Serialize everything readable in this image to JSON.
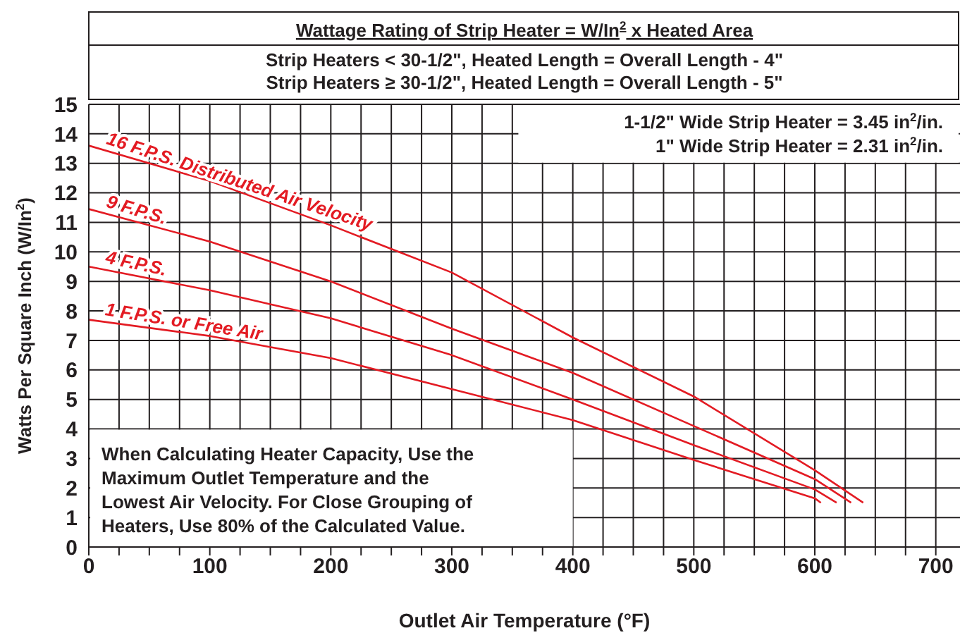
{
  "chart_data": {
    "type": "line",
    "title": "Wattage Rating of Strip Heater = W/In$^{2}$  x Heated Area",
    "subtitle": "Strip Heaters < 30-1/2\", Heated Length = Overall Length - 4\"\nStrip Heaters ≥ 30-1/2\", Heated Length = Overall Length - 5\"",
    "xlabel": "Outlet Air Temperature (°F)",
    "ylabel": "Watts Per Square Inch (W/In$^{2}$)",
    "annotations": [
      "1-1/2\" Wide Strip Heater = 3.45 in$^{2}$/in.\n1\" Wide Strip Heater = 2.31 in$^{2}$/in.",
      "When Calculating Heater Capacity, Use the\nMaximum Outlet Temperature and the\nLowest Air Velocity. For Close Grouping of\nHeaters, Use 80% of the Calculated Value."
    ],
    "series": [
      {
        "name": "16 F.P.S. Distributed Air Velocity",
        "color": "#e31b23",
        "x": [
          0,
          100,
          200,
          300,
          400,
          500,
          600,
          640
        ],
        "values": [
          13.6,
          12.4,
          10.9,
          9.3,
          7.1,
          5.1,
          2.6,
          1.5
        ]
      },
      {
        "name": "9 F.P.S.",
        "color": "#e31b23",
        "x": [
          0,
          100,
          200,
          300,
          400,
          500,
          600,
          630
        ],
        "values": [
          11.45,
          10.35,
          9.0,
          7.4,
          5.9,
          4.1,
          2.3,
          1.5
        ]
      },
      {
        "name": "4 F.P.S.",
        "color": "#e31b23",
        "x": [
          0,
          100,
          200,
          300,
          400,
          500,
          600,
          618
        ],
        "values": [
          9.5,
          8.7,
          7.75,
          6.5,
          5.0,
          3.45,
          1.95,
          1.5
        ]
      },
      {
        "name": "1 F.P.S. or Free Air",
        "color": "#e31b23",
        "x": [
          0,
          100,
          200,
          300,
          400,
          500,
          600,
          605
        ],
        "values": [
          7.7,
          7.15,
          6.4,
          5.35,
          4.3,
          2.95,
          1.65,
          1.5
        ]
      }
    ],
    "xlim": [
      0,
      720
    ],
    "xticks": [
      0,
      {
        "value": 25,
        "label": null
      },
      {
        "value": 50,
        "label": null
      },
      {
        "value": 75,
        "label": null
      },
      100,
      {
        "value": 125,
        "label": null
      },
      {
        "value": 150,
        "label": null
      },
      {
        "value": 175,
        "label": null
      },
      200,
      {
        "value": 225,
        "label": null
      },
      {
        "value": 250,
        "label": null
      },
      {
        "value": 275,
        "label": null
      },
      300,
      {
        "value": 325,
        "label": null
      },
      {
        "value": 350,
        "label": null
      },
      {
        "value": 375,
        "label": null
      },
      400,
      {
        "value": 425,
        "label": null
      },
      {
        "value": 450,
        "label": null
      },
      {
        "value": 475,
        "label": null
      },
      500,
      {
        "value": 525,
        "label": null
      },
      {
        "value": 550,
        "label": null
      },
      {
        "value": 575,
        "label": null
      },
      600,
      {
        "value": 625,
        "label": null
      },
      {
        "value": 650,
        "label": null
      },
      {
        "value": 675,
        "label": null
      },
      700
    ],
    "ylim": [
      0,
      15
    ],
    "yticks": [
      0,
      1,
      2,
      3,
      4,
      5,
      6,
      7,
      8,
      9,
      10,
      11,
      12,
      13,
      14,
      15
    ],
    "grid": true,
    "legend": false,
    "marker": "none",
    "line_style": "solid"
  }
}
